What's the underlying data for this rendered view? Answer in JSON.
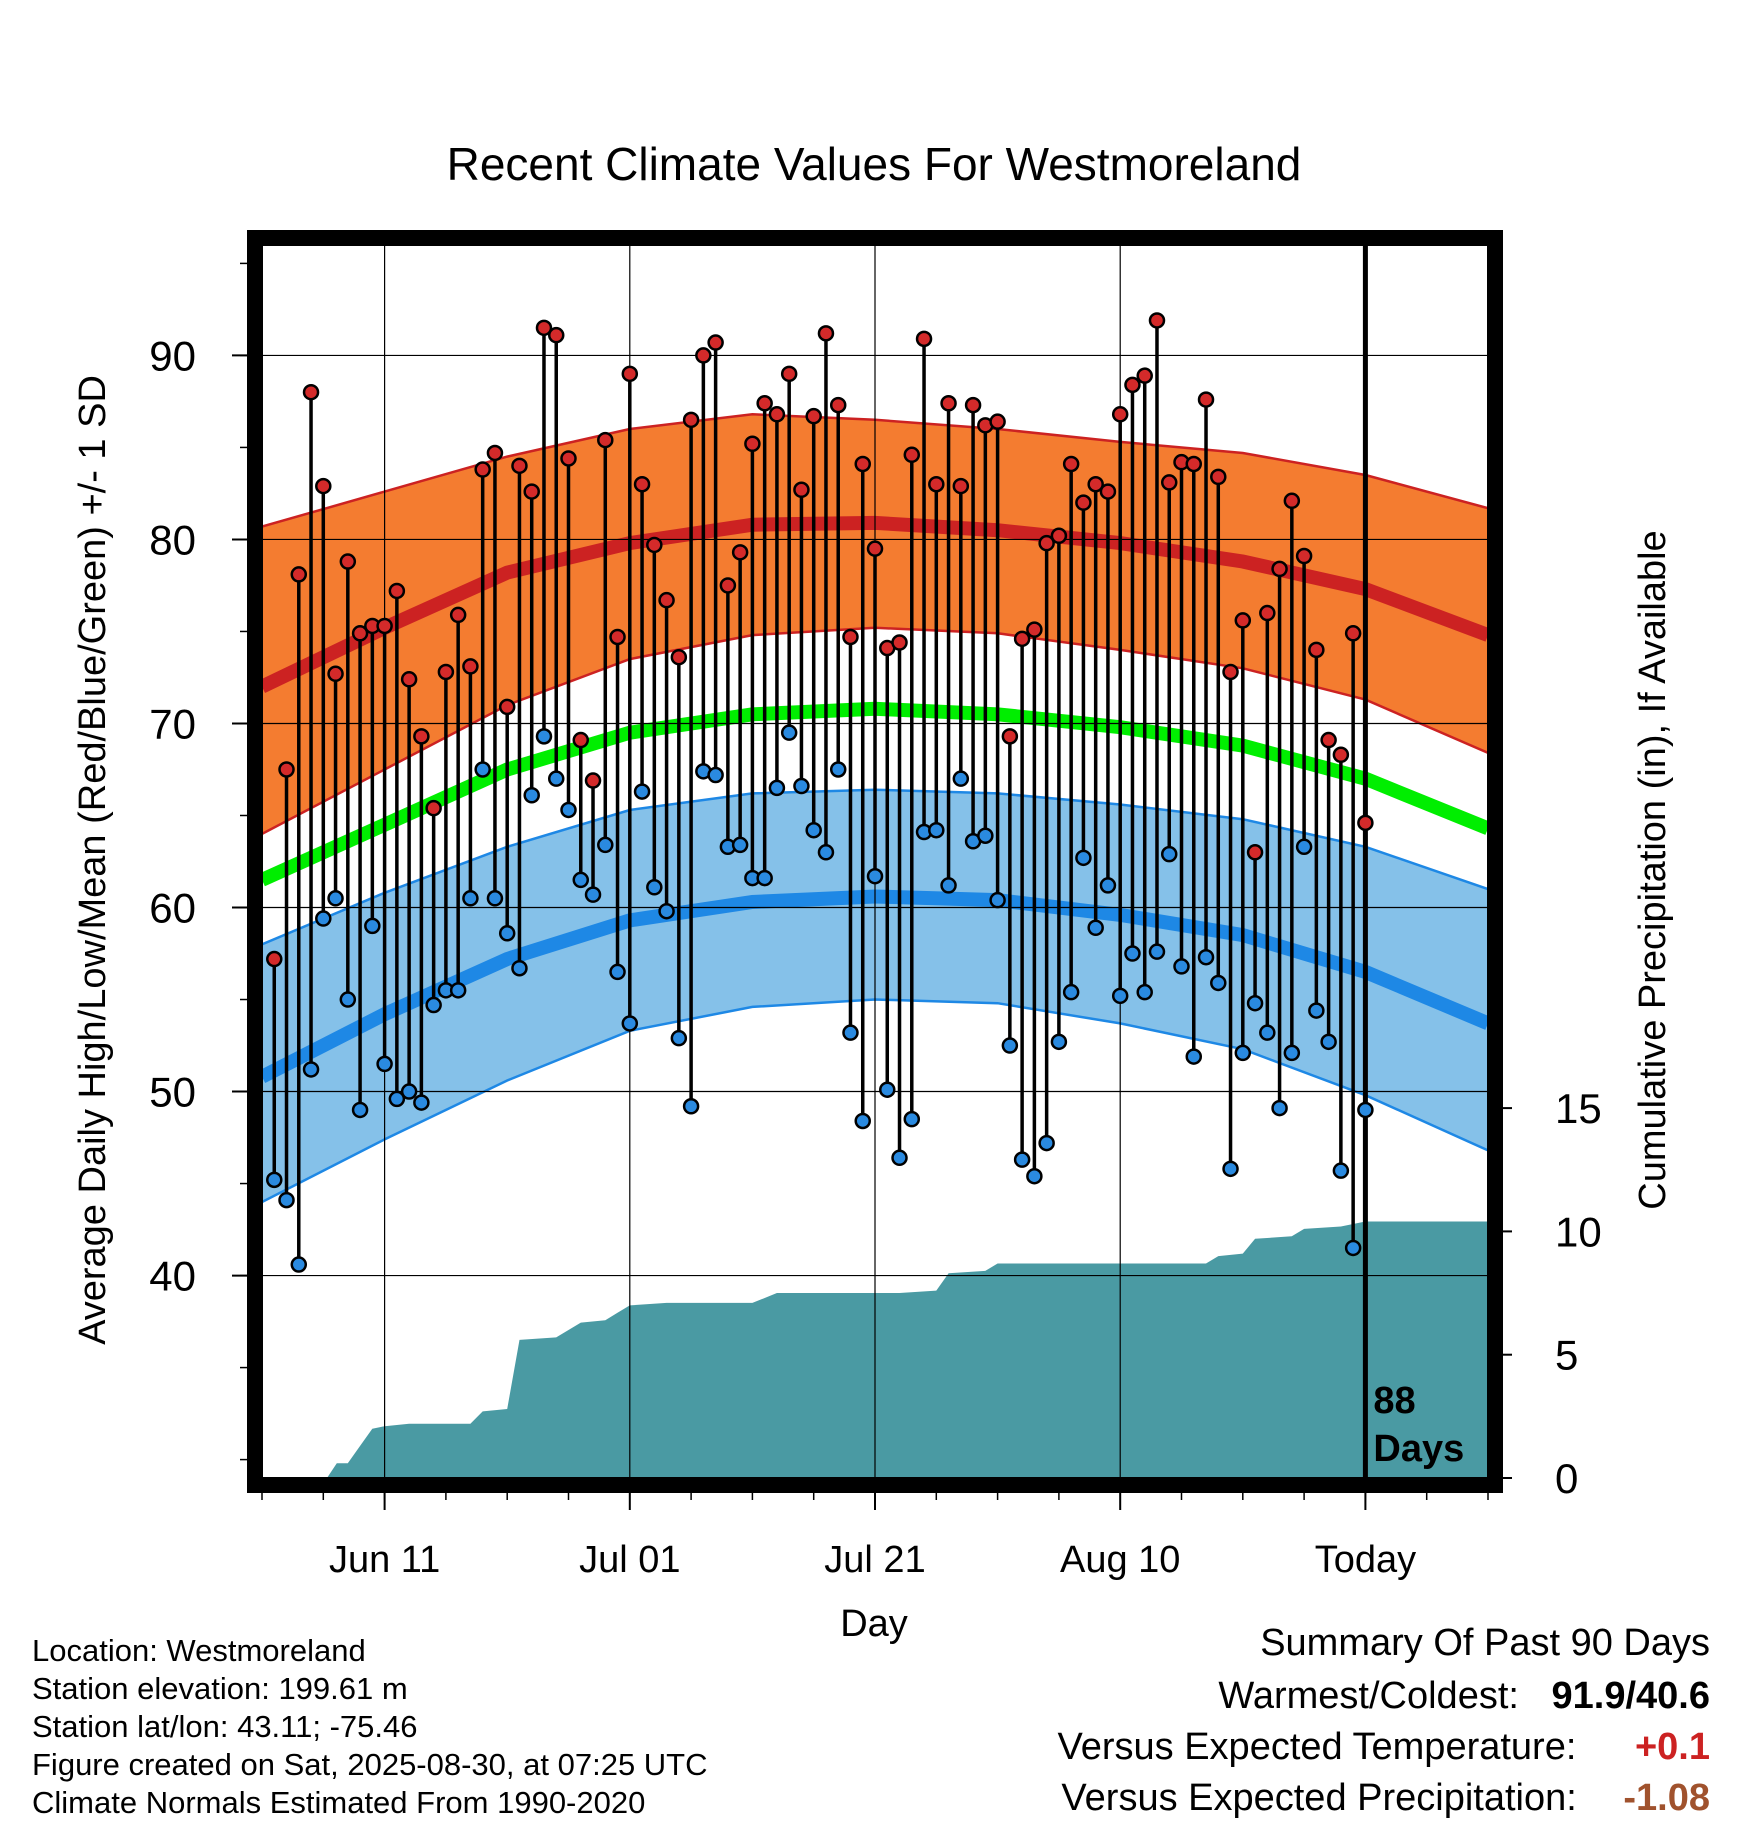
{
  "chart_data": {
    "type": "line",
    "title": "Recent Climate Values For Westmoreland",
    "xlabel": "Day",
    "ylabel": "Average Daily High/Low/Mean (Red/Blue/Green) +/- 1 SD",
    "ylabel_right": "Cumulative Precipitation (in), If Available",
    "x_ticks": [
      "Jun 11",
      "Jul 01",
      "Jul 21",
      "Aug 10",
      "Today"
    ],
    "x_tick_days": [
      10,
      30,
      50,
      70,
      90
    ],
    "day_range": [
      0,
      100
    ],
    "y_ticks": [
      40,
      50,
      60,
      70,
      80,
      90
    ],
    "ylim": [
      29,
      96
    ],
    "y2_ticks": [
      0,
      5,
      10,
      15
    ],
    "y2_range": [
      0,
      50
    ],
    "today_day": 90,
    "today_annotation": [
      "88",
      "Days"
    ],
    "normals": {
      "high_mean": [
        [
          0,
          72
        ],
        [
          10,
          75.2
        ],
        [
          20,
          78.2
        ],
        [
          30,
          79.8
        ],
        [
          40,
          80.8
        ],
        [
          50,
          80.9
        ],
        [
          60,
          80.5
        ],
        [
          70,
          79.8
        ],
        [
          80,
          78.8
        ],
        [
          90,
          77.3
        ],
        [
          100,
          74.8
        ]
      ],
      "high_sd_upper": [
        [
          0,
          80.7
        ],
        [
          10,
          82.6
        ],
        [
          20,
          84.5
        ],
        [
          30,
          86
        ],
        [
          40,
          86.8
        ],
        [
          50,
          86.5
        ],
        [
          60,
          86
        ],
        [
          70,
          85.3
        ],
        [
          80,
          84.7
        ],
        [
          90,
          83.5
        ],
        [
          100,
          81.7
        ]
      ],
      "high_sd_lower": [
        [
          0,
          64
        ],
        [
          10,
          67.5
        ],
        [
          20,
          71
        ],
        [
          30,
          73.5
        ],
        [
          40,
          74.8
        ],
        [
          50,
          75.2
        ],
        [
          60,
          74.9
        ],
        [
          70,
          74
        ],
        [
          80,
          73
        ],
        [
          90,
          71.3
        ],
        [
          100,
          68.4
        ]
      ],
      "mean": [
        [
          0,
          61.5
        ],
        [
          10,
          64.5
        ],
        [
          20,
          67.5
        ],
        [
          30,
          69.5
        ],
        [
          40,
          70.5
        ],
        [
          50,
          70.8
        ],
        [
          60,
          70.5
        ],
        [
          70,
          69.8
        ],
        [
          80,
          68.8
        ],
        [
          90,
          67
        ],
        [
          100,
          64.3
        ]
      ],
      "low_mean": [
        [
          0,
          50.8
        ],
        [
          10,
          54.2
        ],
        [
          20,
          57.2
        ],
        [
          30,
          59.3
        ],
        [
          40,
          60.3
        ],
        [
          50,
          60.6
        ],
        [
          60,
          60.4
        ],
        [
          70,
          59.6
        ],
        [
          80,
          58.5
        ],
        [
          90,
          56.5
        ],
        [
          100,
          53.7
        ]
      ],
      "low_sd_upper": [
        [
          0,
          58
        ],
        [
          10,
          60.8
        ],
        [
          20,
          63.3
        ],
        [
          30,
          65.3
        ],
        [
          40,
          66.2
        ],
        [
          50,
          66.4
        ],
        [
          60,
          66.2
        ],
        [
          70,
          65.6
        ],
        [
          80,
          64.8
        ],
        [
          90,
          63.3
        ],
        [
          100,
          61
        ]
      ],
      "low_sd_lower": [
        [
          0,
          44
        ],
        [
          10,
          47.4
        ],
        [
          20,
          50.6
        ],
        [
          30,
          53.3
        ],
        [
          40,
          54.6
        ],
        [
          50,
          55
        ],
        [
          60,
          54.8
        ],
        [
          70,
          53.7
        ],
        [
          80,
          52.3
        ],
        [
          90,
          49.8
        ],
        [
          100,
          46.8
        ]
      ]
    },
    "series": [
      {
        "name": "High",
        "color": "#cc2222"
      },
      {
        "name": "Low",
        "color": "#1e88e5"
      },
      {
        "name": "Mean",
        "color": "#00ee00"
      }
    ],
    "daily": [
      [
        1,
        57.2,
        45.2
      ],
      [
        2,
        67.5,
        44.1
      ],
      [
        3,
        78.1,
        40.6
      ],
      [
        4,
        88,
        51.2
      ],
      [
        5,
        82.9,
        59.4
      ],
      [
        6,
        72.7,
        60.5
      ],
      [
        7,
        78.8,
        55
      ],
      [
        8,
        74.9,
        49
      ],
      [
        9,
        75.3,
        59
      ],
      [
        10,
        75.3,
        51.5
      ],
      [
        11,
        77.2,
        49.6
      ],
      [
        12,
        72.4,
        50
      ],
      [
        13,
        69.3,
        49.4
      ],
      [
        14,
        65.4,
        54.7
      ],
      [
        15,
        72.8,
        55.5
      ],
      [
        16,
        75.9,
        55.5
      ],
      [
        17,
        73.1,
        60.5
      ],
      [
        18,
        83.8,
        67.5
      ],
      [
        19,
        84.7,
        60.5
      ],
      [
        20,
        70.9,
        58.6
      ],
      [
        21,
        84,
        56.7
      ],
      [
        22,
        82.6,
        66.1
      ],
      [
        23,
        91.5,
        69.3
      ],
      [
        24,
        91.1,
        67
      ],
      [
        25,
        84.4,
        65.3
      ],
      [
        26,
        69.1,
        61.5
      ],
      [
        27,
        66.9,
        60.7
      ],
      [
        28,
        85.4,
        63.4
      ],
      [
        29,
        74.7,
        56.5
      ],
      [
        30,
        89,
        53.7
      ],
      [
        31,
        83,
        66.3
      ],
      [
        32,
        79.7,
        61.1
      ],
      [
        33,
        76.7,
        59.8
      ],
      [
        34,
        73.6,
        52.9
      ],
      [
        35,
        86.5,
        49.2
      ],
      [
        36,
        90,
        67.4
      ],
      [
        37,
        90.7,
        67.2
      ],
      [
        38,
        77.5,
        63.3
      ],
      [
        39,
        79.3,
        63.4
      ],
      [
        40,
        85.2,
        61.6
      ],
      [
        41,
        87.4,
        61.6
      ],
      [
        42,
        86.8,
        66.5
      ],
      [
        43,
        89,
        69.5
      ],
      [
        44,
        82.7,
        66.6
      ],
      [
        45,
        86.7,
        64.2
      ],
      [
        46,
        91.2,
        63
      ],
      [
        47,
        87.3,
        67.5
      ],
      [
        48,
        74.7,
        53.2
      ],
      [
        49,
        84.1,
        48.4
      ],
      [
        50,
        79.5,
        61.7
      ],
      [
        51,
        74.1,
        50.1
      ],
      [
        52,
        74.4,
        46.4
      ],
      [
        53,
        84.6,
        48.5
      ],
      [
        54,
        90.9,
        64.1
      ],
      [
        55,
        83,
        64.2
      ],
      [
        56,
        87.4,
        61.2
      ],
      [
        57,
        82.9,
        67
      ],
      [
        58,
        87.3,
        63.6
      ],
      [
        59,
        86.2,
        63.9
      ],
      [
        60,
        86.4,
        60.4
      ],
      [
        61,
        69.3,
        52.5
      ],
      [
        62,
        74.6,
        46.3
      ],
      [
        63,
        75.1,
        45.4
      ],
      [
        64,
        79.8,
        47.2
      ],
      [
        65,
        80.2,
        52.7
      ],
      [
        66,
        84.1,
        55.4
      ],
      [
        67,
        82,
        62.7
      ],
      [
        68,
        83,
        58.9
      ],
      [
        69,
        82.6,
        61.2
      ],
      [
        70,
        86.8,
        55.2
      ],
      [
        71,
        88.4,
        57.5
      ],
      [
        72,
        88.9,
        55.4
      ],
      [
        73,
        91.9,
        57.6
      ],
      [
        74,
        83.1,
        62.9
      ],
      [
        75,
        84.2,
        56.8
      ],
      [
        76,
        84.1,
        51.9
      ],
      [
        77,
        87.6,
        57.3
      ],
      [
        78,
        83.4,
        55.9
      ],
      [
        79,
        72.8,
        45.8
      ],
      [
        80,
        75.6,
        52.1
      ],
      [
        81,
        63,
        54.8
      ],
      [
        82,
        76,
        53.2
      ],
      [
        83,
        78.4,
        49.1
      ],
      [
        84,
        82.1,
        52.1
      ],
      [
        85,
        79.1,
        63.3
      ],
      [
        86,
        74,
        54.4
      ],
      [
        87,
        69.1,
        52.7
      ],
      [
        88,
        68.3,
        45.7
      ],
      [
        89,
        74.9,
        41.5
      ],
      [
        90,
        64.6,
        49
      ]
    ],
    "precip_cumulative": [
      [
        0,
        0
      ],
      [
        5.3,
        0
      ],
      [
        6.1,
        0.6
      ],
      [
        7,
        0.6
      ],
      [
        8,
        1.3
      ],
      [
        9,
        2
      ],
      [
        10,
        2.1
      ],
      [
        12,
        2.2
      ],
      [
        17,
        2.2
      ],
      [
        18,
        2.7
      ],
      [
        20,
        2.8
      ],
      [
        21,
        5.6
      ],
      [
        24,
        5.7
      ],
      [
        25,
        6
      ],
      [
        26,
        6.3
      ],
      [
        28,
        6.4
      ],
      [
        29,
        6.7
      ],
      [
        30,
        7
      ],
      [
        33,
        7.1
      ],
      [
        40,
        7.1
      ],
      [
        41,
        7.3
      ],
      [
        42,
        7.5
      ],
      [
        52,
        7.5
      ],
      [
        55,
        7.6
      ],
      [
        56,
        8.3
      ],
      [
        59,
        8.4
      ],
      [
        60,
        8.7
      ],
      [
        77,
        8.7
      ],
      [
        78,
        9
      ],
      [
        80,
        9.1
      ],
      [
        81,
        9.7
      ],
      [
        84,
        9.8
      ],
      [
        85,
        10.1
      ],
      [
        88,
        10.2
      ],
      [
        90,
        10.4
      ],
      [
        100,
        10.4
      ]
    ],
    "colors": {
      "high_band": "#f47c30",
      "high_line": "#cc2222",
      "low_band": "#85c1e9",
      "low_line": "#1e88e5",
      "mean_line": "#00ee00",
      "precip_fill": "#4a9aa3"
    },
    "grid": true
  },
  "info": {
    "location": "Location: Westmoreland",
    "elevation": "Station elevation: 199.61 m",
    "latlon": "Station lat/lon: 43.11; -75.46",
    "created": "Figure created on Sat, 2025-08-30, at 07:25 UTC",
    "normals": "Climate Normals Estimated From 1990-2020"
  },
  "summary": {
    "title": "Summary Of Past 90 Days",
    "warm_cold_label": "Warmest/Coldest:",
    "warm_cold_value": "91.9/40.6",
    "temp_label": "Versus Expected Temperature:",
    "temp_value": "+0.1",
    "temp_color": "#cc2222",
    "precip_label": "Versus Expected Precipitation:",
    "precip_value": "-1.08",
    "precip_color": "#a0522d"
  }
}
